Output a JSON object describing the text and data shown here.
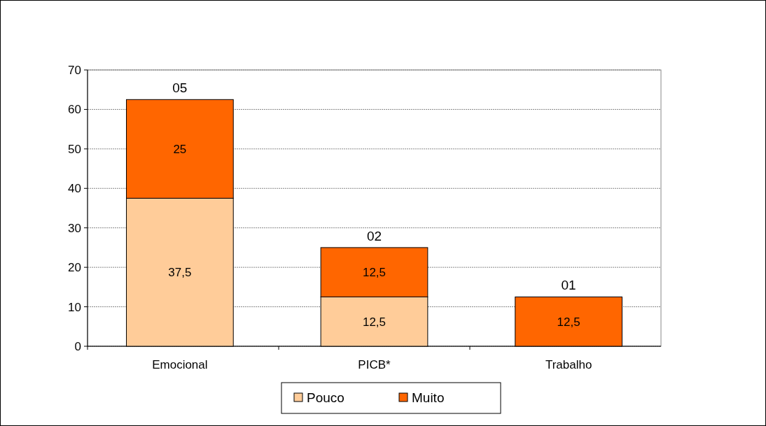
{
  "chart_data": {
    "type": "bar",
    "stacked": true,
    "categories": [
      "Emocional",
      "PICB*",
      "Trabalho"
    ],
    "series": [
      {
        "name": "Pouco",
        "color": "#ffcc99",
        "values": [
          37.5,
          12.5,
          0
        ],
        "value_labels": [
          "37,5",
          "12,5",
          null
        ]
      },
      {
        "name": "Muito",
        "color": "#ff6600",
        "values": [
          25,
          12.5,
          12.5
        ],
        "value_labels": [
          "25",
          "12,5",
          "12,5"
        ]
      }
    ],
    "annotations": [
      {
        "text": "05",
        "x": "Emocional",
        "y": 62.5
      },
      {
        "text": "02",
        "x": "PICB*",
        "y": 25
      },
      {
        "text": "01",
        "x": "Trabalho",
        "y": 12.5
      }
    ],
    "ylim": [
      0,
      70
    ],
    "yticks": [
      0,
      10,
      20,
      30,
      40,
      50,
      60,
      70
    ],
    "grid": "y",
    "legend": "bottom"
  }
}
